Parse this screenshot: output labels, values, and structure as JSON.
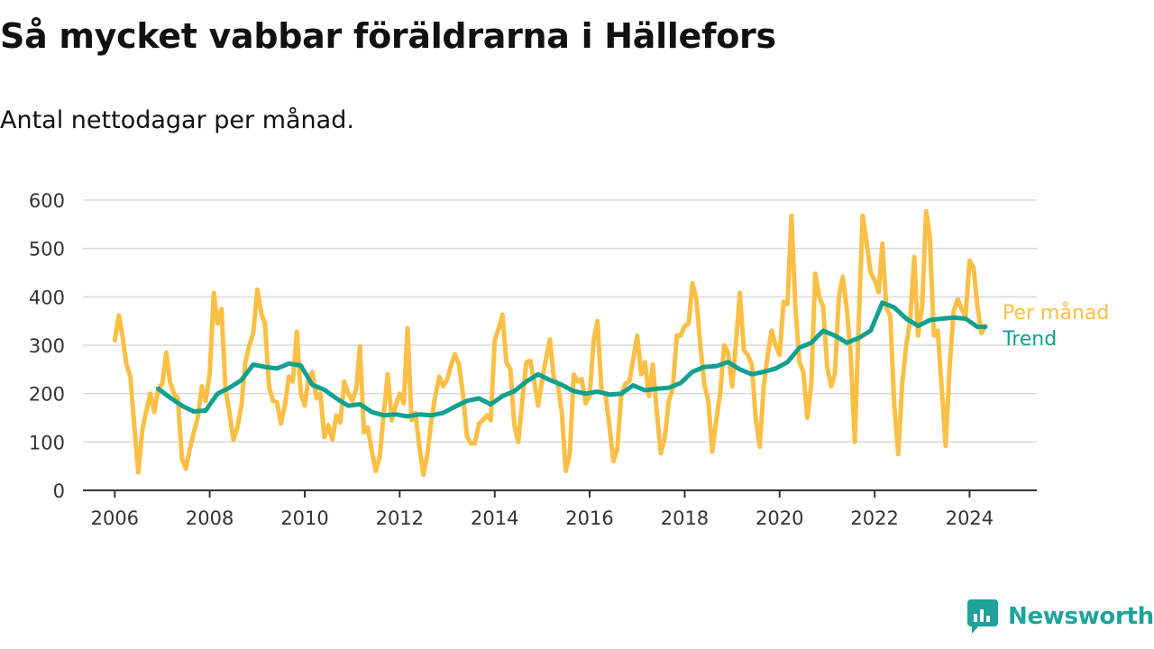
{
  "title": "Så mycket vabbar föräldrarna i Hällefors",
  "subtitle": "Antal nettodagar per månad.",
  "brand": {
    "name": "Newsworthy"
  },
  "colors": {
    "monthly": "#fbbf45",
    "trend": "#12a08f",
    "grid": "#d9d9d9",
    "axis": "#333333",
    "brand": "#1fa39a"
  },
  "chart_data": {
    "type": "line",
    "x_axis": {
      "type": "time",
      "range": [
        "2005-05-01",
        "2025-06-01"
      ],
      "ticks": [
        "2006",
        "2008",
        "2010",
        "2012",
        "2014",
        "2016",
        "2018",
        "2020",
        "2022",
        "2024"
      ]
    },
    "y_axis": {
      "range": [
        0,
        600
      ],
      "ticks": [
        0,
        100,
        200,
        300,
        400,
        500,
        600
      ]
    },
    "grid": "horizontal",
    "legend": "inline labels at right end of lines",
    "series": [
      {
        "name": "Per månad",
        "color": "#fbbf45",
        "points": [
          [
            "2006-01",
            310
          ],
          [
            "2006-02",
            362
          ],
          [
            "2006-03",
            320
          ],
          [
            "2006-04",
            260
          ],
          [
            "2006-05",
            235
          ],
          [
            "2006-06",
            130
          ],
          [
            "2006-07",
            37
          ],
          [
            "2006-08",
            125
          ],
          [
            "2006-09",
            165
          ],
          [
            "2006-10",
            200
          ],
          [
            "2006-11",
            162
          ],
          [
            "2006-12",
            210
          ],
          [
            "2007-01",
            220
          ],
          [
            "2007-02",
            285
          ],
          [
            "2007-03",
            225
          ],
          [
            "2007-04",
            200
          ],
          [
            "2007-05",
            190
          ],
          [
            "2007-06",
            65
          ],
          [
            "2007-07",
            45
          ],
          [
            "2007-08",
            85
          ],
          [
            "2007-09",
            120
          ],
          [
            "2007-10",
            150
          ],
          [
            "2007-11",
            215
          ],
          [
            "2007-12",
            185
          ],
          [
            "2008-01",
            240
          ],
          [
            "2008-02",
            408
          ],
          [
            "2008-03",
            345
          ],
          [
            "2008-04",
            375
          ],
          [
            "2008-05",
            210
          ],
          [
            "2008-06",
            160
          ],
          [
            "2008-07",
            105
          ],
          [
            "2008-08",
            130
          ],
          [
            "2008-09",
            175
          ],
          [
            "2008-10",
            265
          ],
          [
            "2008-11",
            300
          ],
          [
            "2008-12",
            325
          ],
          [
            "2009-01",
            415
          ],
          [
            "2009-02",
            365
          ],
          [
            "2009-03",
            345
          ],
          [
            "2009-04",
            215
          ],
          [
            "2009-05",
            185
          ],
          [
            "2009-06",
            182
          ],
          [
            "2009-07",
            138
          ],
          [
            "2009-08",
            175
          ],
          [
            "2009-09",
            235
          ],
          [
            "2009-10",
            225
          ],
          [
            "2009-11",
            328
          ],
          [
            "2009-12",
            200
          ],
          [
            "2010-01",
            175
          ],
          [
            "2010-02",
            235
          ],
          [
            "2010-03",
            245
          ],
          [
            "2010-04",
            190
          ],
          [
            "2010-05",
            200
          ],
          [
            "2010-06",
            110
          ],
          [
            "2010-07",
            135
          ],
          [
            "2010-08",
            105
          ],
          [
            "2010-09",
            155
          ],
          [
            "2010-10",
            140
          ],
          [
            "2010-11",
            225
          ],
          [
            "2010-12",
            200
          ],
          [
            "2011-01",
            185
          ],
          [
            "2011-02",
            210
          ],
          [
            "2011-03",
            298
          ],
          [
            "2011-04",
            120
          ],
          [
            "2011-05",
            130
          ],
          [
            "2011-06",
            80
          ],
          [
            "2011-07",
            40
          ],
          [
            "2011-08",
            70
          ],
          [
            "2011-09",
            160
          ],
          [
            "2011-10",
            240
          ],
          [
            "2011-11",
            145
          ],
          [
            "2011-12",
            175
          ],
          [
            "2012-01",
            200
          ],
          [
            "2012-02",
            180
          ],
          [
            "2012-03",
            335
          ],
          [
            "2012-04",
            145
          ],
          [
            "2012-05",
            160
          ],
          [
            "2012-06",
            90
          ],
          [
            "2012-07",
            32
          ],
          [
            "2012-08",
            75
          ],
          [
            "2012-09",
            145
          ],
          [
            "2012-10",
            195
          ],
          [
            "2012-11",
            235
          ],
          [
            "2012-12",
            215
          ],
          [
            "2013-01",
            230
          ],
          [
            "2013-02",
            260
          ],
          [
            "2013-03",
            282
          ],
          [
            "2013-04",
            260
          ],
          [
            "2013-05",
            200
          ],
          [
            "2013-06",
            112
          ],
          [
            "2013-07",
            97
          ],
          [
            "2013-08",
            97
          ],
          [
            "2013-09",
            137
          ],
          [
            "2013-10",
            145
          ],
          [
            "2013-11",
            155
          ],
          [
            "2013-12",
            145
          ],
          [
            "2014-01",
            310
          ],
          [
            "2014-02",
            335
          ],
          [
            "2014-03",
            363
          ],
          [
            "2014-04",
            265
          ],
          [
            "2014-05",
            250
          ],
          [
            "2014-06",
            135
          ],
          [
            "2014-07",
            100
          ],
          [
            "2014-08",
            185
          ],
          [
            "2014-09",
            265
          ],
          [
            "2014-10",
            268
          ],
          [
            "2014-11",
            225
          ],
          [
            "2014-12",
            175
          ],
          [
            "2015-01",
            230
          ],
          [
            "2015-02",
            275
          ],
          [
            "2015-03",
            312
          ],
          [
            "2015-04",
            230
          ],
          [
            "2015-05",
            220
          ],
          [
            "2015-06",
            160
          ],
          [
            "2015-07",
            40
          ],
          [
            "2015-08",
            75
          ],
          [
            "2015-09",
            240
          ],
          [
            "2015-10",
            225
          ],
          [
            "2015-11",
            230
          ],
          [
            "2015-12",
            180
          ],
          [
            "2016-01",
            195
          ],
          [
            "2016-02",
            310
          ],
          [
            "2016-03",
            350
          ],
          [
            "2016-04",
            205
          ],
          [
            "2016-05",
            200
          ],
          [
            "2016-06",
            135
          ],
          [
            "2016-07",
            60
          ],
          [
            "2016-08",
            85
          ],
          [
            "2016-09",
            200
          ],
          [
            "2016-10",
            220
          ],
          [
            "2016-11",
            225
          ],
          [
            "2016-12",
            270
          ],
          [
            "2017-01",
            320
          ],
          [
            "2017-02",
            240
          ],
          [
            "2017-03",
            265
          ],
          [
            "2017-04",
            195
          ],
          [
            "2017-05",
            260
          ],
          [
            "2017-06",
            160
          ],
          [
            "2017-07",
            77
          ],
          [
            "2017-08",
            110
          ],
          [
            "2017-09",
            185
          ],
          [
            "2017-10",
            210
          ],
          [
            "2017-11",
            320
          ],
          [
            "2017-12",
            320
          ],
          [
            "2018-01",
            340
          ],
          [
            "2018-02",
            345
          ],
          [
            "2018-03",
            428
          ],
          [
            "2018-04",
            395
          ],
          [
            "2018-05",
            300
          ],
          [
            "2018-06",
            220
          ],
          [
            "2018-07",
            185
          ],
          [
            "2018-08",
            80
          ],
          [
            "2018-09",
            145
          ],
          [
            "2018-10",
            200
          ],
          [
            "2018-11",
            300
          ],
          [
            "2018-12",
            285
          ],
          [
            "2019-01",
            215
          ],
          [
            "2019-02",
            310
          ],
          [
            "2019-03",
            408
          ],
          [
            "2019-04",
            290
          ],
          [
            "2019-05",
            280
          ],
          [
            "2019-06",
            260
          ],
          [
            "2019-07",
            150
          ],
          [
            "2019-08",
            90
          ],
          [
            "2019-09",
            215
          ],
          [
            "2019-10",
            280
          ],
          [
            "2019-11",
            330
          ],
          [
            "2019-12",
            300
          ],
          [
            "2020-01",
            280
          ],
          [
            "2020-02",
            390
          ],
          [
            "2020-03",
            385
          ],
          [
            "2020-04",
            568
          ],
          [
            "2020-05",
            380
          ],
          [
            "2020-06",
            265
          ],
          [
            "2020-07",
            245
          ],
          [
            "2020-08",
            150
          ],
          [
            "2020-09",
            220
          ],
          [
            "2020-10",
            448
          ],
          [
            "2020-11",
            400
          ],
          [
            "2020-12",
            380
          ],
          [
            "2021-01",
            255
          ],
          [
            "2021-02",
            215
          ],
          [
            "2021-03",
            240
          ],
          [
            "2021-04",
            400
          ],
          [
            "2021-05",
            442
          ],
          [
            "2021-06",
            375
          ],
          [
            "2021-07",
            280
          ],
          [
            "2021-08",
            100
          ],
          [
            "2021-09",
            355
          ],
          [
            "2021-10",
            568
          ],
          [
            "2021-11",
            510
          ],
          [
            "2021-12",
            450
          ],
          [
            "2022-01",
            435
          ],
          [
            "2022-02",
            410
          ],
          [
            "2022-03",
            510
          ],
          [
            "2022-04",
            378
          ],
          [
            "2022-05",
            360
          ],
          [
            "2022-06",
            175
          ],
          [
            "2022-07",
            75
          ],
          [
            "2022-08",
            220
          ],
          [
            "2022-09",
            300
          ],
          [
            "2022-10",
            350
          ],
          [
            "2022-11",
            482
          ],
          [
            "2022-12",
            320
          ],
          [
            "2023-01",
            380
          ],
          [
            "2023-02",
            577
          ],
          [
            "2023-03",
            525
          ],
          [
            "2023-04",
            320
          ],
          [
            "2023-05",
            330
          ],
          [
            "2023-06",
            210
          ],
          [
            "2023-07",
            92
          ],
          [
            "2023-08",
            260
          ],
          [
            "2023-09",
            370
          ],
          [
            "2023-10",
            395
          ],
          [
            "2023-11",
            375
          ],
          [
            "2023-12",
            360
          ],
          [
            "2024-01",
            475
          ],
          [
            "2024-02",
            460
          ],
          [
            "2024-03",
            380
          ],
          [
            "2024-04",
            325
          ],
          [
            "2024-05",
            340
          ]
        ]
      },
      {
        "name": "Trend",
        "color": "#12a08f",
        "points": [
          [
            "2006-12",
            210
          ],
          [
            "2007-03",
            192
          ],
          [
            "2007-06",
            175
          ],
          [
            "2007-09",
            163
          ],
          [
            "2007-12",
            165
          ],
          [
            "2008-03",
            200
          ],
          [
            "2008-06",
            212
          ],
          [
            "2008-09",
            228
          ],
          [
            "2008-12",
            260
          ],
          [
            "2009-03",
            255
          ],
          [
            "2009-06",
            252
          ],
          [
            "2009-09",
            262
          ],
          [
            "2009-12",
            258
          ],
          [
            "2010-03",
            218
          ],
          [
            "2010-06",
            208
          ],
          [
            "2010-09",
            190
          ],
          [
            "2010-12",
            175
          ],
          [
            "2011-03",
            178
          ],
          [
            "2011-06",
            162
          ],
          [
            "2011-09",
            155
          ],
          [
            "2011-12",
            157
          ],
          [
            "2012-03",
            153
          ],
          [
            "2012-06",
            157
          ],
          [
            "2012-09",
            155
          ],
          [
            "2012-12",
            160
          ],
          [
            "2013-03",
            173
          ],
          [
            "2013-06",
            185
          ],
          [
            "2013-09",
            190
          ],
          [
            "2013-12",
            178
          ],
          [
            "2014-03",
            195
          ],
          [
            "2014-06",
            205
          ],
          [
            "2014-09",
            225
          ],
          [
            "2014-12",
            240
          ],
          [
            "2015-03",
            228
          ],
          [
            "2015-06",
            218
          ],
          [
            "2015-09",
            205
          ],
          [
            "2015-12",
            200
          ],
          [
            "2016-03",
            204
          ],
          [
            "2016-06",
            198
          ],
          [
            "2016-09",
            200
          ],
          [
            "2016-12",
            217
          ],
          [
            "2017-03",
            207
          ],
          [
            "2017-06",
            210
          ],
          [
            "2017-09",
            212
          ],
          [
            "2017-12",
            222
          ],
          [
            "2018-03",
            245
          ],
          [
            "2018-06",
            255
          ],
          [
            "2018-09",
            257
          ],
          [
            "2018-12",
            265
          ],
          [
            "2019-03",
            250
          ],
          [
            "2019-06",
            240
          ],
          [
            "2019-09",
            245
          ],
          [
            "2019-12",
            252
          ],
          [
            "2020-03",
            265
          ],
          [
            "2020-06",
            295
          ],
          [
            "2020-09",
            305
          ],
          [
            "2020-12",
            330
          ],
          [
            "2021-03",
            320
          ],
          [
            "2021-06",
            305
          ],
          [
            "2021-09",
            315
          ],
          [
            "2021-12",
            330
          ],
          [
            "2022-03",
            388
          ],
          [
            "2022-06",
            378
          ],
          [
            "2022-09",
            355
          ],
          [
            "2022-12",
            340
          ],
          [
            "2023-03",
            352
          ],
          [
            "2023-06",
            355
          ],
          [
            "2023-09",
            357
          ],
          [
            "2023-12",
            355
          ],
          [
            "2024-03",
            338
          ],
          [
            "2024-05",
            338
          ]
        ]
      }
    ]
  }
}
